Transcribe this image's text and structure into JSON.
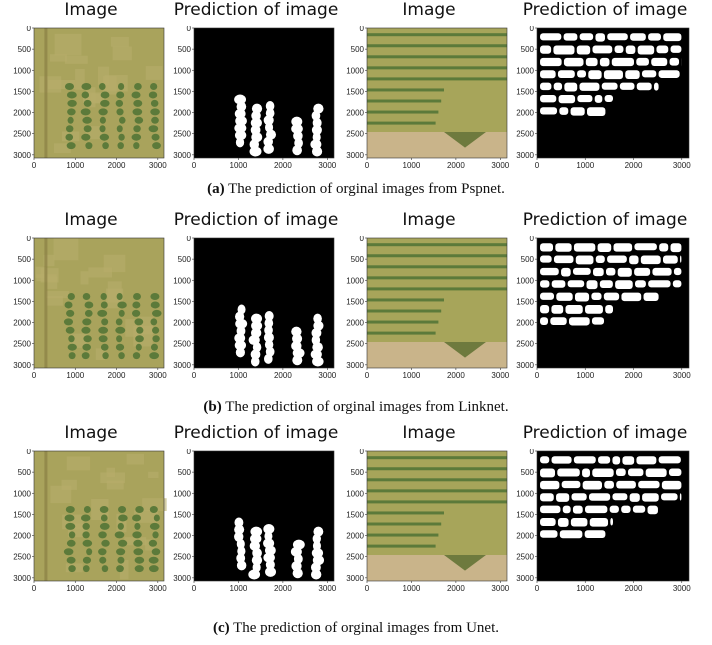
{
  "figures": [
    {
      "caption_label": "(a)",
      "caption_text": "The prediction of orginal images from Pspnet.",
      "panels": [
        {
          "title": "Image",
          "kind": "photo-plot",
          "xticks": [
            "0",
            "1000",
            "2000",
            "3000"
          ],
          "yticks": [
            "0",
            "500",
            "1000",
            "1500",
            "2000",
            "2500",
            "3000"
          ]
        },
        {
          "title": "Prediction of image",
          "kind": "mask-plot",
          "xticks": [
            "0",
            "1000",
            "2000",
            "3000"
          ],
          "yticks": [
            "0",
            "500",
            "1000",
            "1500",
            "2000",
            "2500",
            "3000"
          ]
        },
        {
          "title": "Image",
          "kind": "field-photo",
          "xticks": [
            "0",
            "1000",
            "2000",
            "3000"
          ],
          "yticks": [
            "0",
            "500",
            "1000",
            "1500",
            "2000",
            "2500",
            "3000"
          ]
        },
        {
          "title": "Prediction of image",
          "kind": "field-mask",
          "xticks": [
            "0",
            "1000",
            "2000",
            "3000"
          ],
          "yticks": [
            "0",
            "500",
            "1000",
            "1500",
            "2000",
            "2500",
            "3000"
          ]
        }
      ]
    },
    {
      "caption_label": "(b)",
      "caption_text": "The prediction of orginal images from Linknet.",
      "panels": [
        {
          "title": "Image",
          "kind": "photo-plot",
          "xticks": [
            "0",
            "1000",
            "2000",
            "3000"
          ],
          "yticks": [
            "0",
            "500",
            "1000",
            "1500",
            "2000",
            "2500",
            "3000"
          ]
        },
        {
          "title": "Prediction of image",
          "kind": "mask-plot",
          "xticks": [
            "0",
            "1000",
            "2000",
            "3000"
          ],
          "yticks": [
            "0",
            "500",
            "1000",
            "1500",
            "2000",
            "2500",
            "3000"
          ]
        },
        {
          "title": "Image",
          "kind": "field-photo",
          "xticks": [
            "0",
            "1000",
            "2000",
            "3000"
          ],
          "yticks": [
            "0",
            "500",
            "1000",
            "1500",
            "2000",
            "2500",
            "3000"
          ]
        },
        {
          "title": "Prediction of image",
          "kind": "field-mask",
          "xticks": [
            "0",
            "1000",
            "2000",
            "3000"
          ],
          "yticks": [
            "0",
            "500",
            "1000",
            "1500",
            "2000",
            "2500",
            "3000"
          ]
        }
      ]
    },
    {
      "caption_label": "(c)",
      "caption_text": "The prediction of orginal images from Unet.",
      "panels": [
        {
          "title": "Image",
          "kind": "photo-plot",
          "xticks": [
            "0",
            "1000",
            "2000",
            "3000"
          ],
          "yticks": [
            "0",
            "500",
            "1000",
            "1500",
            "2000",
            "2500",
            "3000"
          ]
        },
        {
          "title": "Prediction of image",
          "kind": "mask-plot",
          "xticks": [
            "0",
            "1000",
            "2000",
            "3000"
          ],
          "yticks": [
            "0",
            "500",
            "1000",
            "1500",
            "2000",
            "2500",
            "3000"
          ]
        },
        {
          "title": "Image",
          "kind": "field-photo",
          "xticks": [
            "0",
            "1000",
            "2000",
            "3000"
          ],
          "yticks": [
            "0",
            "500",
            "1000",
            "1500",
            "2000",
            "2500",
            "3000"
          ]
        },
        {
          "title": "Prediction of image",
          "kind": "field-mask",
          "xticks": [
            "0",
            "1000",
            "2000",
            "3000"
          ],
          "yticks": [
            "0",
            "500",
            "1000",
            "1500",
            "2000",
            "2500",
            "3000"
          ]
        }
      ]
    }
  ],
  "colors": {
    "mask_bg": "#000000",
    "mask_fg": "#ffffff",
    "crop_green": "#5c7a3a",
    "soil": "#c9b48a",
    "grass": "#a9a35c"
  }
}
